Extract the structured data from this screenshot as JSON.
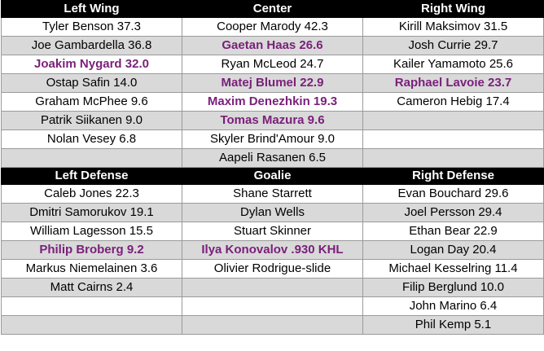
{
  "sections": [
    {
      "headers": [
        "Left Wing",
        "Center",
        "Right Wing"
      ],
      "rows": [
        [
          {
            "text": "Tyler Benson 37.3",
            "hl": false
          },
          {
            "text": "Cooper Marody 42.3",
            "hl": false
          },
          {
            "text": "Kirill Maksimov 31.5",
            "hl": false
          }
        ],
        [
          {
            "text": "Joe Gambardella 36.8",
            "hl": false
          },
          {
            "text": "Gaetan Haas 26.6",
            "hl": true
          },
          {
            "text": "Josh Currie 29.7",
            "hl": false
          }
        ],
        [
          {
            "text": "Joakim Nygard 32.0",
            "hl": true
          },
          {
            "text": "Ryan McLeod 24.7",
            "hl": false
          },
          {
            "text": "Kailer Yamamoto 25.6",
            "hl": false
          }
        ],
        [
          {
            "text": "Ostap Safin 14.0",
            "hl": false
          },
          {
            "text": "Matej Blumel 22.9",
            "hl": true
          },
          {
            "text": "Raphael Lavoie 23.7",
            "hl": true
          }
        ],
        [
          {
            "text": "Graham McPhee 9.6",
            "hl": false
          },
          {
            "text": "Maxim Denezhkin 19.3",
            "hl": true
          },
          {
            "text": "Cameron Hebig 17.4",
            "hl": false
          }
        ],
        [
          {
            "text": "Patrik Siikanen 9.0",
            "hl": false
          },
          {
            "text": "Tomas Mazura 9.6",
            "hl": true
          },
          {
            "text": "",
            "hl": false
          }
        ],
        [
          {
            "text": "Nolan Vesey 6.8",
            "hl": false
          },
          {
            "text": "Skyler Brind'Amour 9.0",
            "hl": false
          },
          {
            "text": "",
            "hl": false
          }
        ],
        [
          {
            "text": "",
            "hl": false
          },
          {
            "text": "Aapeli Rasanen 6.5",
            "hl": false
          },
          {
            "text": "",
            "hl": false
          }
        ]
      ]
    },
    {
      "headers": [
        "Left Defense",
        "Goalie",
        "Right Defense"
      ],
      "rows": [
        [
          {
            "text": "Caleb Jones 22.3",
            "hl": false
          },
          {
            "text": "Shane Starrett",
            "hl": false
          },
          {
            "text": "Evan Bouchard 29.6",
            "hl": false
          }
        ],
        [
          {
            "text": "Dmitri Samorukov 19.1",
            "hl": false
          },
          {
            "text": "Dylan Wells",
            "hl": false
          },
          {
            "text": "Joel Persson 29.4",
            "hl": false
          }
        ],
        [
          {
            "text": "William Lagesson 15.5",
            "hl": false
          },
          {
            "text": "Stuart Skinner",
            "hl": false
          },
          {
            "text": "Ethan Bear 22.9",
            "hl": false
          }
        ],
        [
          {
            "text": "Philip Broberg 9.2",
            "hl": true
          },
          {
            "text": "Ilya Konovalov .930 KHL",
            "hl": true
          },
          {
            "text": "Logan Day 20.4",
            "hl": false
          }
        ],
        [
          {
            "text": "Markus Niemelainen 3.6",
            "hl": false
          },
          {
            "text": "Olivier Rodrigue-slide",
            "hl": false
          },
          {
            "text": "Michael Kesselring 11.4",
            "hl": false
          }
        ],
        [
          {
            "text": "Matt Cairns 2.4",
            "hl": false
          },
          {
            "text": "",
            "hl": false
          },
          {
            "text": "Filip Berglund 10.0",
            "hl": false
          }
        ],
        [
          {
            "text": "",
            "hl": false
          },
          {
            "text": "",
            "hl": false
          },
          {
            "text": "John Marino 6.4",
            "hl": false
          }
        ],
        [
          {
            "text": "",
            "hl": false
          },
          {
            "text": "",
            "hl": false
          },
          {
            "text": "Phil Kemp 5.1",
            "hl": false
          }
        ]
      ]
    }
  ],
  "colors": {
    "header_bg": "#000000",
    "header_text": "#ffffff",
    "shaded_row": "#d9d9d9",
    "highlight_text": "#7a1f7a"
  }
}
